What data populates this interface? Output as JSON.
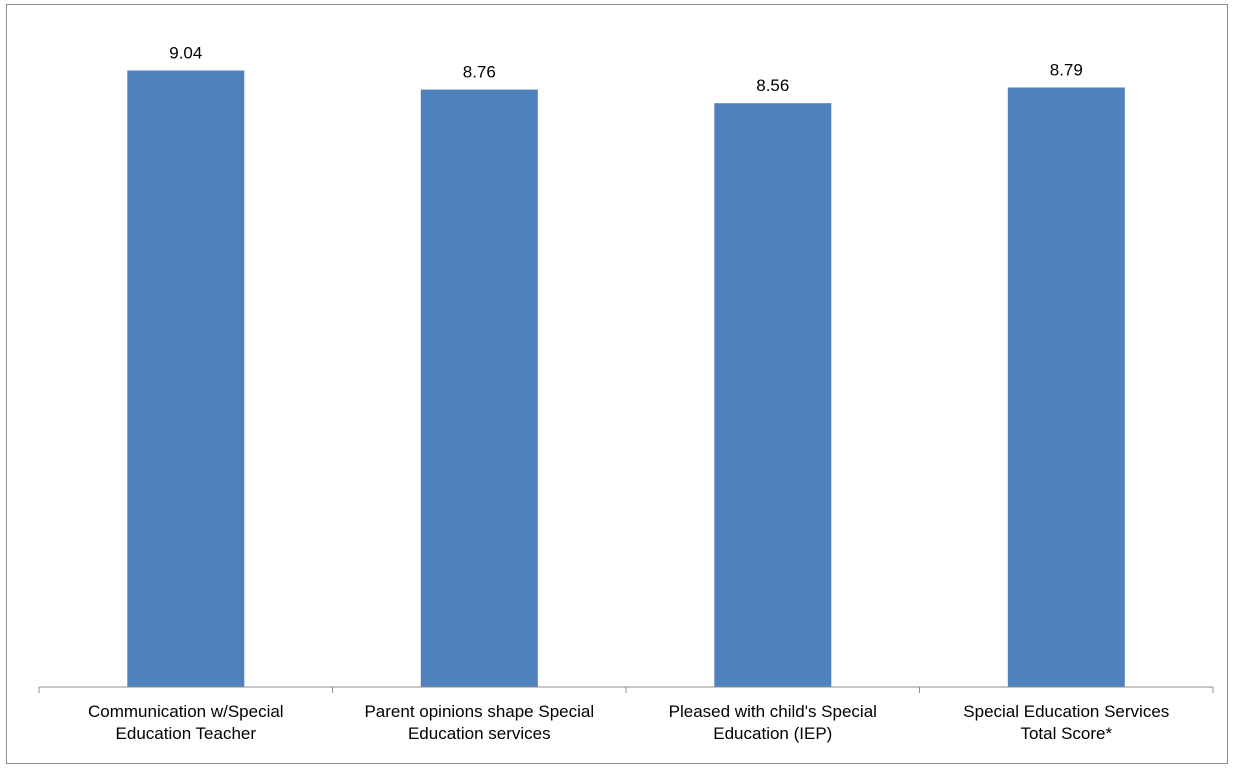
{
  "colors": {
    "bar": "#4F81BD",
    "axis": "#8c8c8c",
    "text": "#000000",
    "border": "#8c8c8c"
  },
  "chart_data": {
    "type": "bar",
    "title": "",
    "xlabel": "",
    "ylabel": "",
    "categories": [
      [
        "Communication w/Special",
        "Education Teacher"
      ],
      [
        "Parent opinions shape Special",
        "Education  services"
      ],
      [
        "Pleased with child's Special",
        "Education (IEP)"
      ],
      [
        "Special Education Services",
        "Total Score*"
      ]
    ],
    "values": [
      9.04,
      8.76,
      8.56,
      8.79
    ],
    "data_labels": [
      "9.04",
      "8.76",
      "8.56",
      "8.79"
    ],
    "ylim": [
      0,
      10
    ],
    "y_axis_visible": false,
    "grid": false,
    "legend": "none"
  }
}
